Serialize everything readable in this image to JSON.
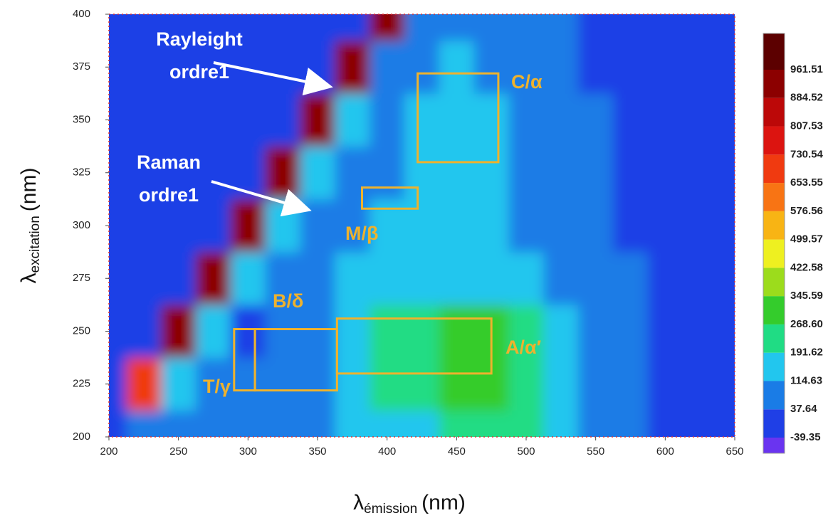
{
  "chart_data": {
    "type": "contour",
    "x_label": {
      "symbol": "λ",
      "sub": "émission",
      "unit": "(nm)"
    },
    "y_label": {
      "symbol": "λ",
      "sub": "excitation",
      "unit": "(nm)"
    },
    "x": [
      200,
      225,
      250,
      275,
      300,
      325,
      350,
      375,
      400,
      425,
      450,
      475,
      500,
      525,
      550,
      575,
      600,
      625,
      650
    ],
    "y": [
      200,
      225,
      250,
      275,
      300,
      325,
      350,
      375,
      400
    ],
    "z": [
      [
        20,
        60,
        40,
        40,
        60,
        60,
        80,
        120,
        150,
        190,
        230,
        240,
        230,
        180,
        90,
        50,
        30,
        20,
        20
      ],
      [
        0,
        700,
        150,
        40,
        40,
        50,
        70,
        150,
        200,
        260,
        300,
        290,
        250,
        170,
        90,
        40,
        20,
        10,
        10
      ],
      [
        0,
        0,
        900,
        150,
        30,
        40,
        60,
        140,
        200,
        250,
        280,
        270,
        220,
        150,
        80,
        40,
        20,
        10,
        10
      ],
      [
        0,
        0,
        0,
        900,
        150,
        50,
        70,
        120,
        150,
        180,
        190,
        170,
        140,
        110,
        70,
        40,
        20,
        10,
        10
      ],
      [
        0,
        0,
        0,
        0,
        900,
        150,
        80,
        100,
        120,
        130,
        130,
        120,
        110,
        90,
        60,
        30,
        20,
        10,
        10
      ],
      [
        0,
        0,
        0,
        0,
        0,
        900,
        160,
        90,
        110,
        120,
        130,
        120,
        100,
        80,
        50,
        30,
        20,
        10,
        10
      ],
      [
        0,
        0,
        0,
        0,
        0,
        0,
        900,
        150,
        100,
        130,
        160,
        140,
        100,
        70,
        40,
        20,
        10,
        10,
        10
      ],
      [
        0,
        0,
        0,
        0,
        0,
        0,
        0,
        900,
        100,
        110,
        120,
        110,
        80,
        60,
        30,
        20,
        10,
        10,
        10
      ],
      [
        0,
        0,
        0,
        0,
        0,
        0,
        0,
        0,
        950,
        90,
        90,
        80,
        60,
        40,
        20,
        10,
        10,
        10,
        10
      ]
    ],
    "xlim": [
      200,
      650
    ],
    "ylim": [
      200,
      400
    ],
    "xticks": [
      200,
      250,
      300,
      350,
      400,
      450,
      500,
      550,
      600,
      650
    ],
    "yticks": [
      200,
      225,
      250,
      275,
      300,
      325,
      350,
      375,
      400
    ],
    "colorbar": {
      "levels": [
        -39.35,
        37.64,
        114.63,
        191.62,
        268.6,
        345.59,
        422.58,
        499.57,
        576.56,
        653.55,
        730.54,
        807.53,
        884.52,
        961.51
      ],
      "labels": [
        "-39.35",
        "37.64",
        "114.63",
        "191.62",
        "268.60",
        "345.59",
        "422.58",
        "499.57",
        "576.56",
        "653.55",
        "730.54",
        "807.53",
        "884.52",
        "961.51"
      ],
      "colors": [
        "#1f3fe6",
        "#1a7ce6",
        "#22c6ee",
        "#20dc84",
        "#34cc2c",
        "#9cdc1c",
        "#eef020",
        "#f8b414",
        "#f87414",
        "#f03a10",
        "#dc1410",
        "#bc0808",
        "#8c0000",
        "#5c0000"
      ],
      "below_color": "#6a34f0"
    },
    "annotations": [
      {
        "lines": [
          "Rayleight",
          "ordre1"
        ]
      },
      {
        "lines": [
          "Raman",
          "ordre1"
        ]
      }
    ],
    "regions": [
      {
        "label": "C/α",
        "em": [
          422,
          480
        ],
        "ex": [
          330,
          372
        ]
      },
      {
        "label": "M/β",
        "em": [
          382,
          422
        ],
        "ex": [
          308,
          318
        ]
      },
      {
        "label": "B/δ",
        "em": [
          305,
          364
        ],
        "ex": [
          222,
          251
        ]
      },
      {
        "label": "A/α′",
        "em": [
          364,
          475
        ],
        "ex": [
          230,
          256
        ]
      },
      {
        "label": "T/γ",
        "em": [
          290,
          305
        ],
        "ex": [
          222,
          251
        ]
      }
    ],
    "region_color": "#eeb22e"
  }
}
